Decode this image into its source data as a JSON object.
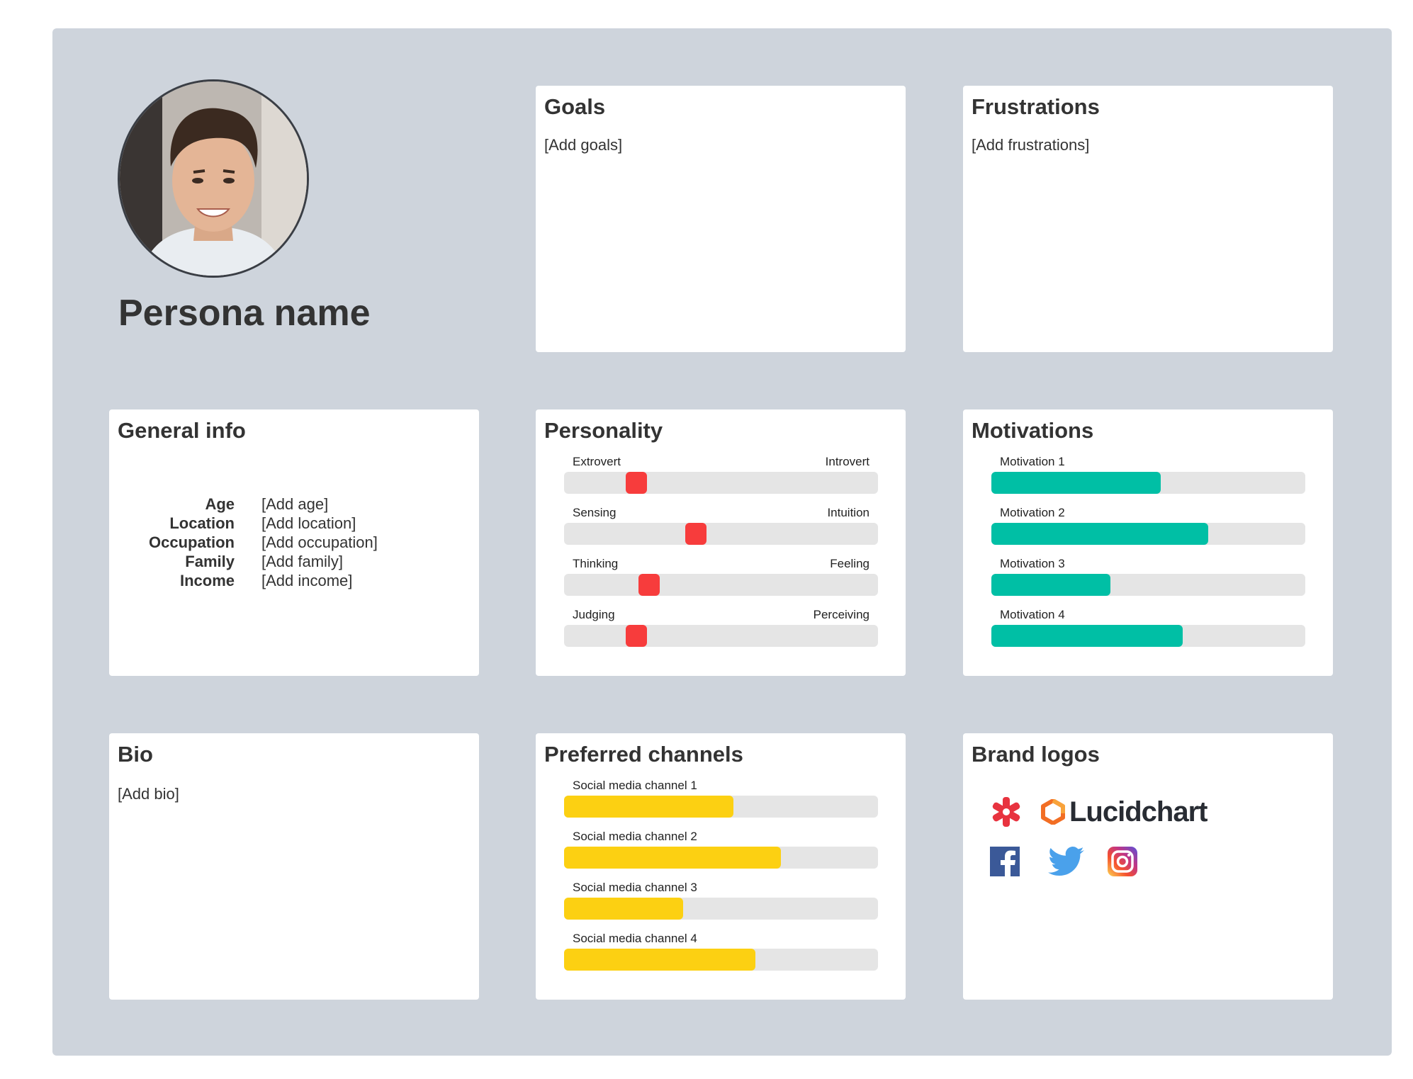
{
  "persona": {
    "name": "Persona name",
    "avatar_icon": "person-photo"
  },
  "goals": {
    "title": "Goals",
    "text": "[Add goals]"
  },
  "frustrations": {
    "title": "Frustrations",
    "text": "[Add frustrations]"
  },
  "general_info": {
    "title": "General info",
    "rows": [
      {
        "label": "Age",
        "value": "[Add age]"
      },
      {
        "label": "Location",
        "value": "[Add location]"
      },
      {
        "label": "Occupation",
        "value": "[Add occupation]"
      },
      {
        "label": "Family",
        "value": "[Add family]"
      },
      {
        "label": "Income",
        "value": "[Add income]"
      }
    ]
  },
  "personality": {
    "title": "Personality",
    "traits": [
      {
        "left": "Extrovert",
        "right": "Introvert",
        "level": 0.23
      },
      {
        "left": "Sensing",
        "right": "Intuition",
        "level": 0.42
      },
      {
        "left": "Thinking",
        "right": "Feeling",
        "level": 0.27
      },
      {
        "left": "Judging",
        "right": "Perceiving",
        "level": 0.23
      }
    ],
    "knob_color": "#f73c3c"
  },
  "motivations": {
    "title": "Motivations",
    "items": [
      {
        "label": "Motivation 1",
        "level": 0.54
      },
      {
        "label": "Motivation 2",
        "level": 0.69
      },
      {
        "label": "Motivation 3",
        "level": 0.38
      },
      {
        "label": "Motivation 4",
        "level": 0.61
      }
    ],
    "color": "#00bfa5"
  },
  "bio": {
    "title": "Bio",
    "text": "[Add bio]"
  },
  "channels": {
    "title": "Preferred channels",
    "items": [
      {
        "label": "Social media channel 1",
        "level": 0.54
      },
      {
        "label": "Social media channel 2",
        "level": 0.69
      },
      {
        "label": "Social media channel 3",
        "level": 0.38
      },
      {
        "label": "Social media channel 4",
        "level": 0.61
      }
    ],
    "color": "#fcd012"
  },
  "brand_logos": {
    "title": "Brand logos",
    "logos": [
      {
        "icon": "red-asterisk-logo",
        "color": "#e8333f"
      },
      {
        "icon": "lucidchart-logo",
        "text": "Lucidchart",
        "color": "#f26e24"
      },
      {
        "icon": "facebook-icon",
        "color": "#3b5998"
      },
      {
        "icon": "twitter-icon",
        "color": "#4aa1eb"
      },
      {
        "icon": "instagram-icon",
        "color": "#c13584"
      }
    ]
  }
}
